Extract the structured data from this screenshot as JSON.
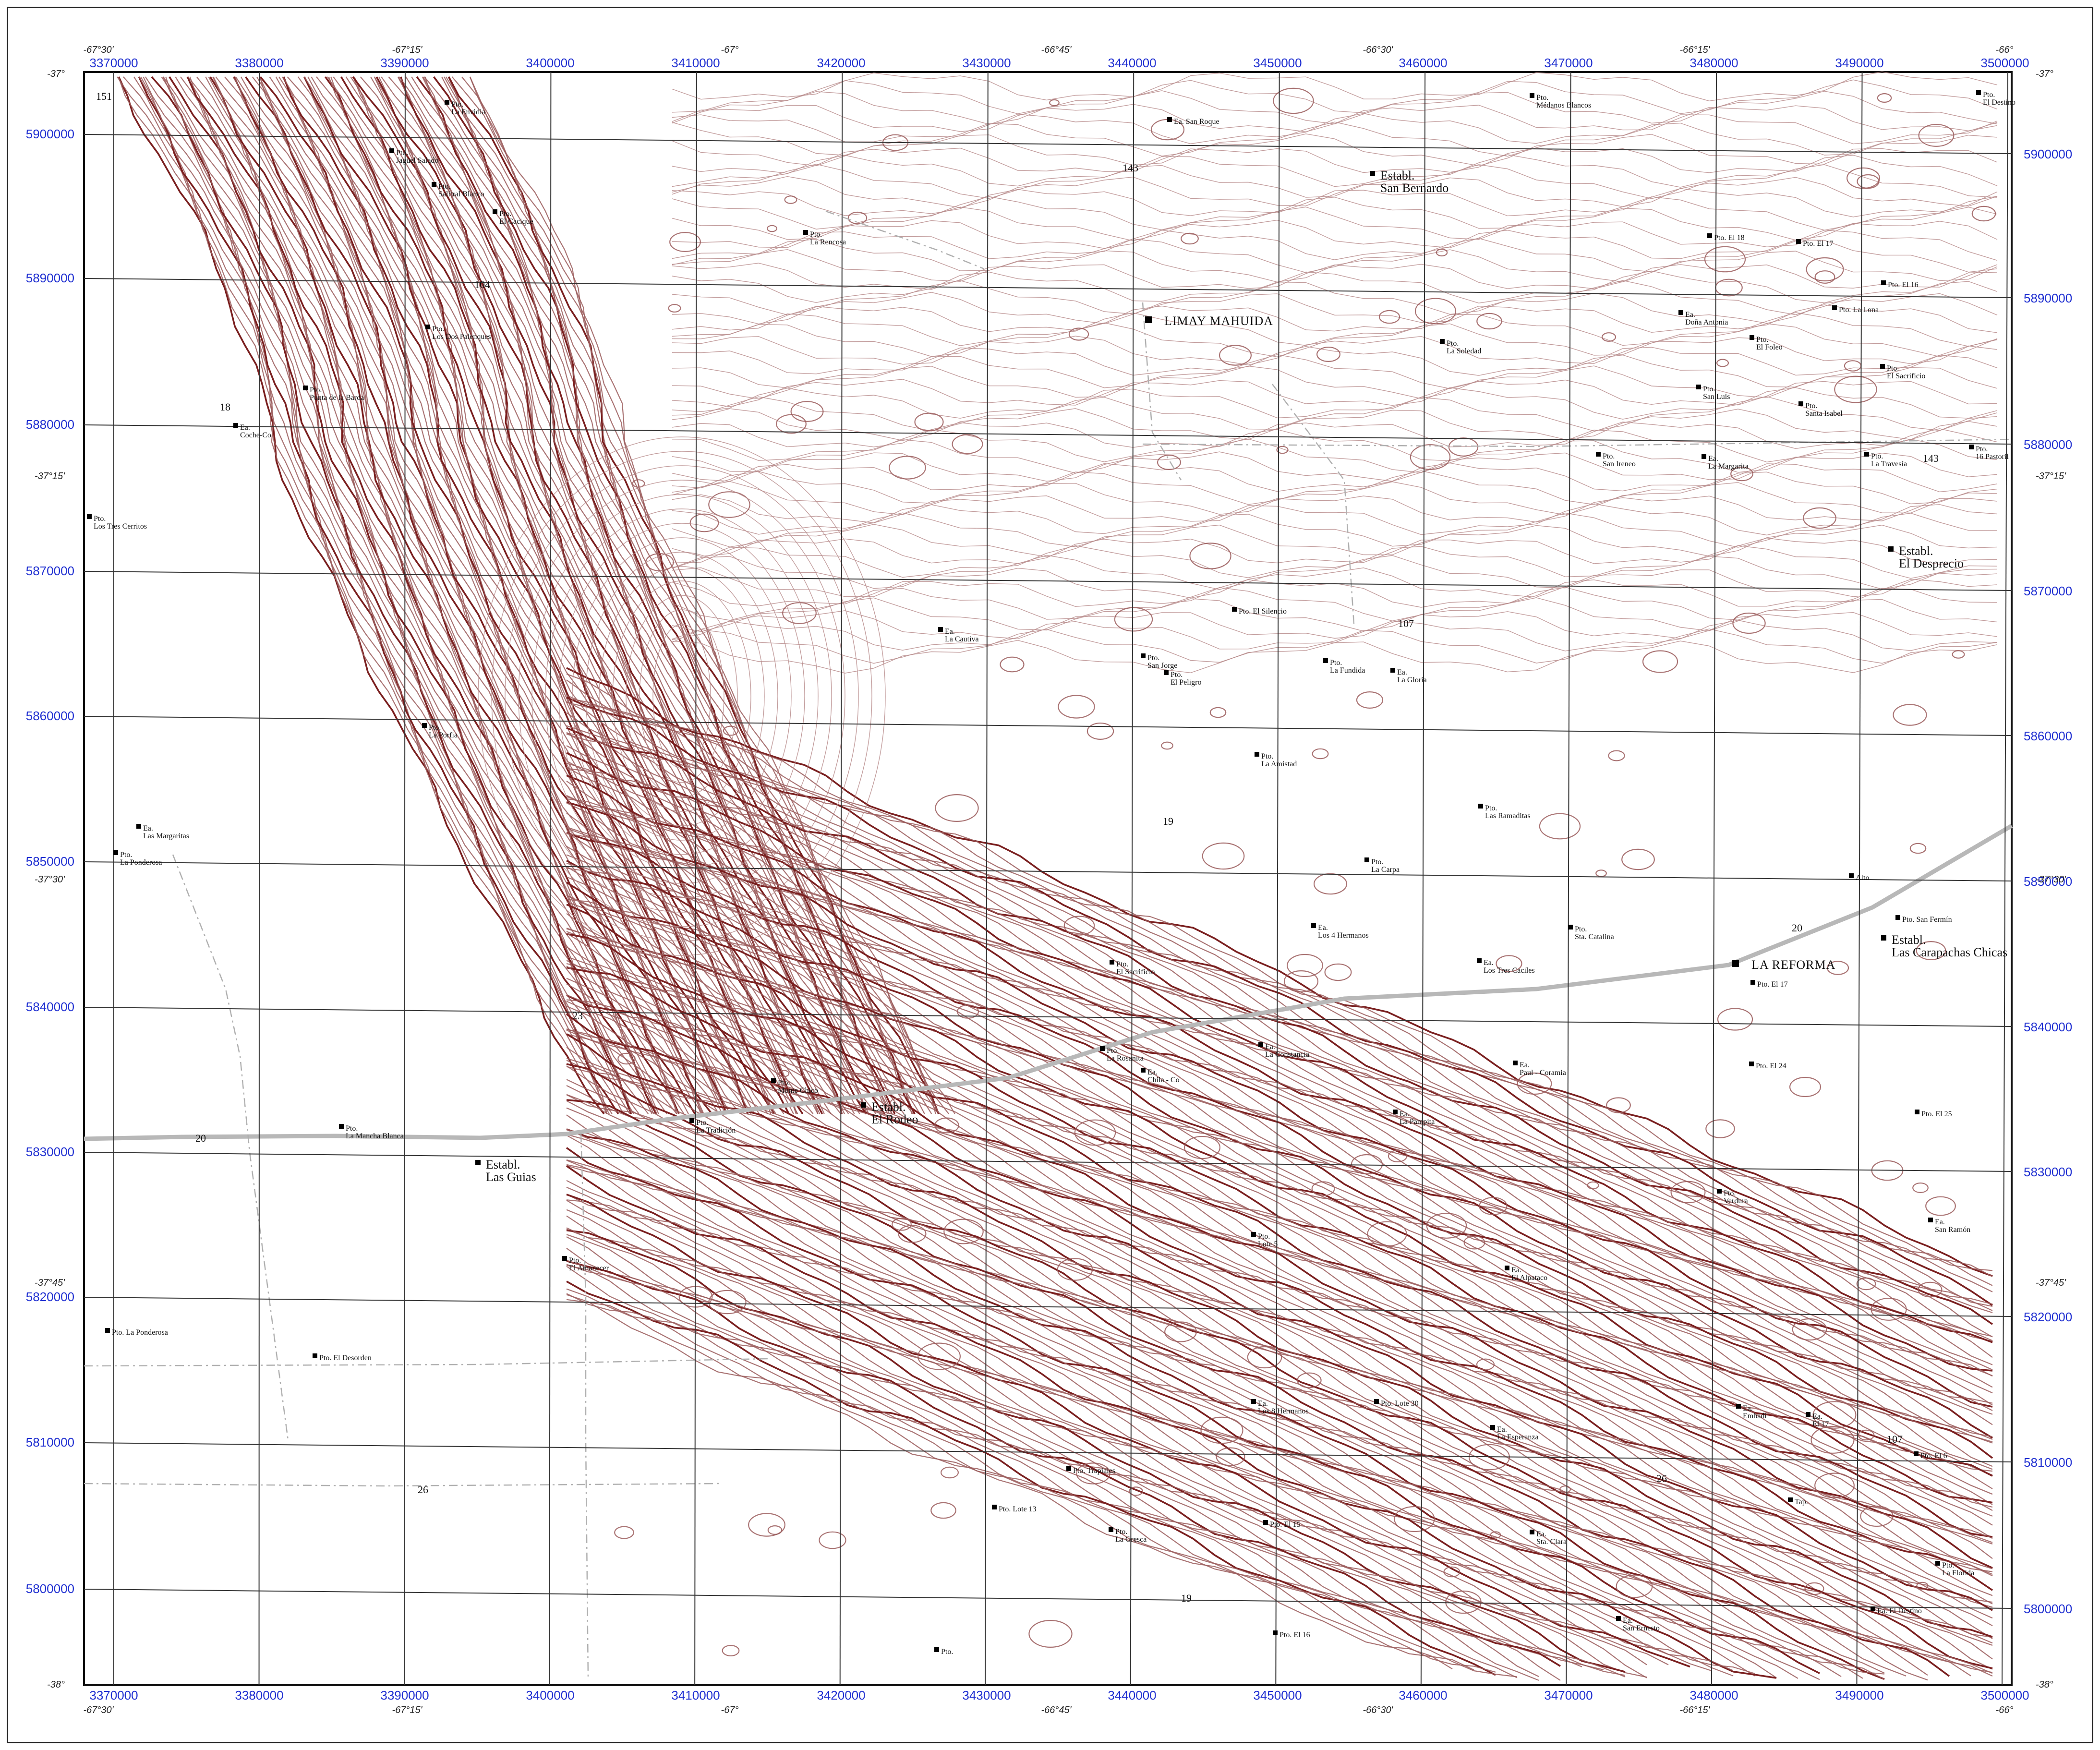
{
  "map": {
    "eastings_top": [
      "3370000",
      "3380000",
      "3390000",
      "3400000",
      "3410000",
      "3420000",
      "3430000",
      "3440000",
      "3450000",
      "3460000",
      "3470000",
      "3480000",
      "3490000",
      "3500000"
    ],
    "eastings_bottom": [
      "3370000",
      "3380000",
      "3390000",
      "3400000",
      "3410000",
      "3420000",
      "3430000",
      "3440000",
      "3450000",
      "3460000",
      "3470000",
      "3480000",
      "3490000",
      "3500000"
    ],
    "northings_left": [
      "5900000",
      "5890000",
      "5880000",
      "5870000",
      "5860000",
      "5850000",
      "5840000",
      "5830000",
      "5820000",
      "5810000",
      "5800000"
    ],
    "northings_right": [
      "5900000",
      "5890000",
      "5880000",
      "5870000",
      "5860000",
      "5850000",
      "5840000",
      "5830000",
      "5820000",
      "5810000",
      "5800000"
    ],
    "lon_top": [
      "-67°30'",
      "-67°15'",
      "-67°",
      "-66°45'",
      "-66°30'",
      "-66°15'",
      "-66°"
    ],
    "lon_bottom": [
      "-67°30'",
      "-67°15'",
      "-67°",
      "-66°45'",
      "-66°30'",
      "-66°15'",
      "-66°"
    ],
    "lat_left": [
      "-37°",
      "-37°15'",
      "-37°30'",
      "-37°45'",
      "-38°"
    ],
    "lat_right": [
      "-37°",
      "-37°15'",
      "-37°30'",
      "-37°45'",
      "-38°"
    ],
    "towns": [
      "LIMAY MAHUIDA",
      "LA REFORMA"
    ],
    "establishments": [
      {
        "l1": "Establ.",
        "l2": "San Bernardo"
      },
      {
        "l1": "Establ.",
        "l2": "El Desprecio"
      },
      {
        "l1": "Establ.",
        "l2": "Las Carapachas Chicas"
      },
      {
        "l1": "Establ.",
        "l2": "El Rodeo"
      },
      {
        "l1": "Establ.",
        "l2": "Las Guias"
      }
    ],
    "route_numbers": [
      "151",
      "104",
      "18",
      "143",
      "143",
      "107",
      "19",
      "20",
      "20",
      "23",
      "26",
      "26",
      "107",
      "19"
    ],
    "places": [
      {
        "l1": "Pto.",
        "l2": "La Envidia"
      },
      {
        "l1": "Pto.",
        "l2": "Jagüel Salado"
      },
      {
        "l1": "Pto.",
        "l2": "Salitral Blanco"
      },
      {
        "l1": "Pto.",
        "l2": "El Cacique"
      },
      {
        "l1": "Pto.",
        "l2": "Los Dos Palenques"
      },
      {
        "l1": "Pto.",
        "l2": "Punta de la Barda"
      },
      {
        "l1": "Ea.",
        "l2": "Coche-Co"
      },
      {
        "l1": "Pto.",
        "l2": "Los Tres Cerritos"
      },
      {
        "l1": "Pto.",
        "l2": "La Porfia"
      },
      {
        "l1": "Ea.",
        "l2": "Las Margaritas"
      },
      {
        "l1": "Pto.",
        "l2": "La Ponderosa"
      },
      {
        "l1": "Pto.",
        "l2": "La Mancha Blanca"
      },
      {
        "l1": "Pto.",
        "l2": "El Amanecer"
      },
      {
        "l1": "Pto. La Ponderosa",
        "l2": ""
      },
      {
        "l1": "Pto. El Desorden",
        "l2": ""
      },
      {
        "l1": "Pto.",
        "l2": "La Rencosa"
      },
      {
        "l1": "Ea. San Roque",
        "l2": ""
      },
      {
        "l1": "Pto.",
        "l2": "Médanos Blancos"
      },
      {
        "l1": "Pto.",
        "l2": "El Destino"
      },
      {
        "l1": "Pto. El 18",
        "l2": ""
      },
      {
        "l1": "Pto. El 17",
        "l2": ""
      },
      {
        "l1": "Pto. El 16",
        "l2": ""
      },
      {
        "l1": "Ea.",
        "l2": "Doña Antonia"
      },
      {
        "l1": "Pto. La Lona",
        "l2": ""
      },
      {
        "l1": "Pto.",
        "l2": "La Soledad"
      },
      {
        "l1": "Pto.",
        "l2": "El Foleo"
      },
      {
        "l1": "Pto.",
        "l2": "El Sacrificio"
      },
      {
        "l1": "Pto.",
        "l2": "San Luis"
      },
      {
        "l1": "Pto.",
        "l2": "Santa Isabel"
      },
      {
        "l1": "Pto.",
        "l2": "San Ireneo"
      },
      {
        "l1": "Ea.",
        "l2": "La Margarita"
      },
      {
        "l1": "Pto.",
        "l2": "La Travesía"
      },
      {
        "l1": "Pto.",
        "l2": "16 Pastoril"
      },
      {
        "l1": "Pto. El Silencio",
        "l2": ""
      },
      {
        "l1": "Pto.",
        "l2": "San Jorge"
      },
      {
        "l1": "Pto.",
        "l2": "El Peligro"
      },
      {
        "l1": "Pto.",
        "l2": "La Fundida"
      },
      {
        "l1": "Ea.",
        "l2": "La Gloria"
      },
      {
        "l1": "Ea.",
        "l2": "La Cautiva"
      },
      {
        "l1": "Pto.",
        "l2": "La Amistad"
      },
      {
        "l1": "Pto.",
        "l2": "Las Ramaditas"
      },
      {
        "l1": "Pto.",
        "l2": "La Carpa"
      },
      {
        "l1": "Ea.",
        "l2": "Los 4 Hermanos"
      },
      {
        "l1": "Ea.",
        "l2": "Los Tres Caciles"
      },
      {
        "l1": "Pto.",
        "l2": "Sta. Catalina"
      },
      {
        "l1": "Pto. San Fermín",
        "l2": ""
      },
      {
        "l1": "Pto. El 17",
        "l2": ""
      },
      {
        "l1": "Pto.",
        "l2": "El Sacrificio"
      },
      {
        "l1": "Pto.",
        "l2": "La Rosanita"
      },
      {
        "l1": "Ea.",
        "l2": "La Constancia"
      },
      {
        "l1": "Ea.",
        "l2": "Chila - Co"
      },
      {
        "l1": "Ea.",
        "l2": "Paul - Coramia"
      },
      {
        "l1": "Pto. El 24",
        "l2": ""
      },
      {
        "l1": "Pto. El 25",
        "l2": ""
      },
      {
        "l1": "Pto.",
        "l2": "Monte Chico"
      },
      {
        "l1": "Pto.",
        "l2": "La Tradición"
      },
      {
        "l1": "Ea.",
        "l2": "La Pampita"
      },
      {
        "l1": "Pto.",
        "l2": "Verdura"
      },
      {
        "l1": "Ea.",
        "l2": "San Ramón"
      },
      {
        "l1": "Pto.",
        "l2": "Lote 5"
      },
      {
        "l1": "Ea.",
        "l2": "El Alpataco"
      },
      {
        "l1": "Ea.",
        "l2": "Los 8 Hermanos"
      },
      {
        "l1": "Pto. Lote 30",
        "l2": ""
      },
      {
        "l1": "Ea.",
        "l2": "La Esperanza"
      },
      {
        "l1": "Pto. Trapiales",
        "l2": ""
      },
      {
        "l1": "Pto. Lote 13",
        "l2": ""
      },
      {
        "l1": "Pto.",
        "l2": "La Gresca"
      },
      {
        "l1": "Pto. El 15",
        "l2": ""
      },
      {
        "l1": "Ea.",
        "l2": "Sta. Clara"
      },
      {
        "l1": "Ea.",
        "l2": "Embadi"
      },
      {
        "l1": "Ea.",
        "l2": "El 17"
      },
      {
        "l1": "Pto. El 6",
        "l2": ""
      },
      {
        "l1": "Tap.",
        "l2": ""
      },
      {
        "l1": "Pto.",
        "l2": "La Florida"
      },
      {
        "l1": "Pto. El 16",
        "l2": ""
      },
      {
        "l1": "Ea.",
        "l2": "San Ernesto"
      },
      {
        "l1": "Ea. El Destino",
        "l2": ""
      },
      {
        "l1": "Pto.",
        "l2": ""
      },
      {
        "l1": "Alto",
        "l2": ""
      }
    ]
  }
}
